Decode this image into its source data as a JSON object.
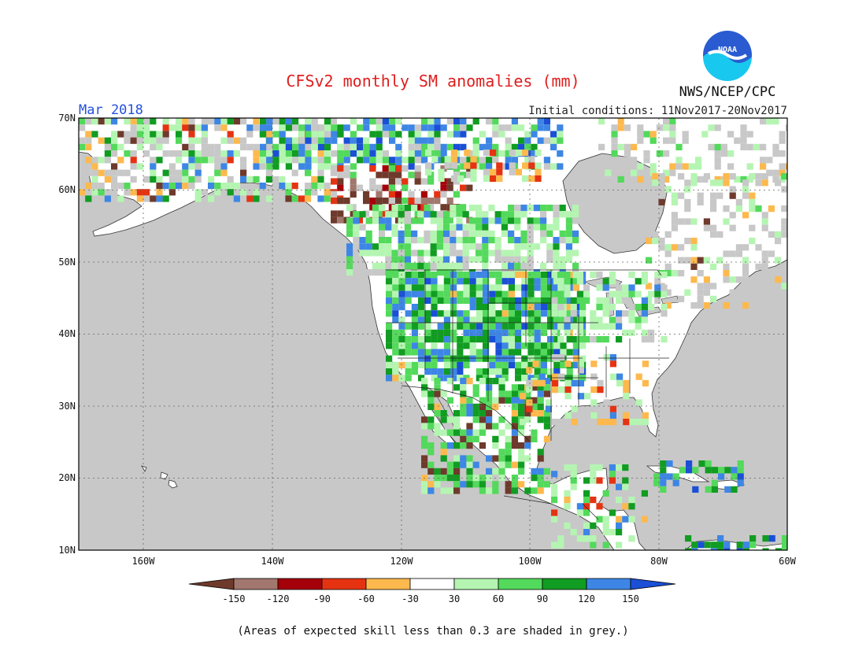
{
  "title": "CFSv2 monthly SM anomalies (mm)",
  "agency": "NWS/NCEP/CPC",
  "logo_text": "NOAA",
  "valid_month": "Mar 2018",
  "init_conditions": "Initial conditions: 11Nov2017-20Nov2017",
  "footnote": "(Areas of expected skill less than 0.3 are shaded in grey.)",
  "map": {
    "lon_range": [
      -172,
      -60
    ],
    "lat_range": [
      10,
      70
    ],
    "lat_labels": [
      "70N",
      "60N",
      "50N",
      "40N",
      "30N",
      "20N",
      "10N"
    ],
    "lon_labels": [
      "160W",
      "140W",
      "120W",
      "100W",
      "80W",
      "60W"
    ],
    "ocean_color": "#c8c8c8",
    "land_color": "#ffffff"
  },
  "legend": {
    "ticks": [
      "-150",
      "-120",
      "-90",
      "-60",
      "-30",
      "30",
      "60",
      "90",
      "120",
      "150"
    ],
    "colors": [
      "#6e3a2c",
      "#a2776d",
      "#a5000a",
      "#e53312",
      "#fdb94e",
      "#ffffff",
      "#b5f5b2",
      "#53d95b",
      "#119c22",
      "#3d86e5",
      "#1a4fd6"
    ]
  }
}
